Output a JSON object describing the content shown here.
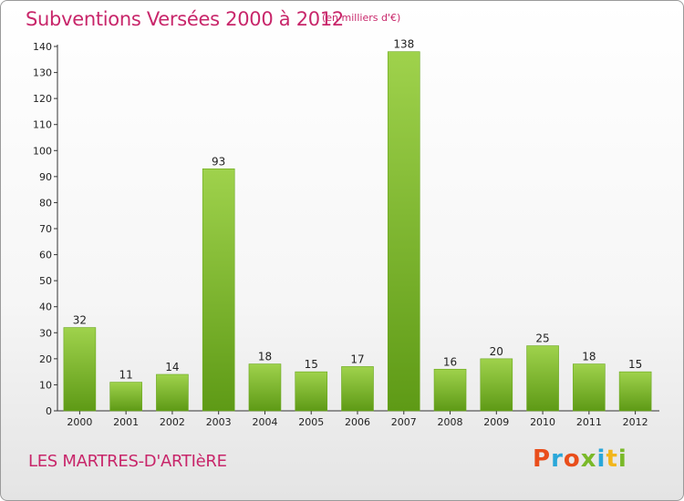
{
  "header": {
    "title": "Subventions Versées 2000 à 2012",
    "unit_note": "(en milliers d'€)"
  },
  "footer": {
    "commune": "LES MARTRES-D'ARTIèRE",
    "logo_text": "Proxiti"
  },
  "colors": {
    "title": "#c8266a",
    "bar_light": "#9fd24c",
    "bar_dark": "#5e9a16",
    "logo_letters": [
      "#e94e1b",
      "#2aa7d9",
      "#e94e1b",
      "#7ab929",
      "#2aa7d9",
      "#f2b61b",
      "#7ab929"
    ]
  },
  "chart_data": {
    "type": "bar",
    "categories": [
      "2000",
      "2001",
      "2002",
      "2003",
      "2004",
      "2005",
      "2006",
      "2007",
      "2008",
      "2009",
      "2010",
      "2011",
      "2012"
    ],
    "values": [
      32,
      11,
      14,
      93,
      18,
      15,
      17,
      138,
      16,
      20,
      25,
      18,
      15
    ],
    "ylim": [
      0,
      140
    ],
    "yticks": [
      0,
      10,
      20,
      30,
      40,
      50,
      60,
      70,
      80,
      90,
      100,
      110,
      120,
      130,
      140
    ],
    "grid": false,
    "legend": "none"
  }
}
